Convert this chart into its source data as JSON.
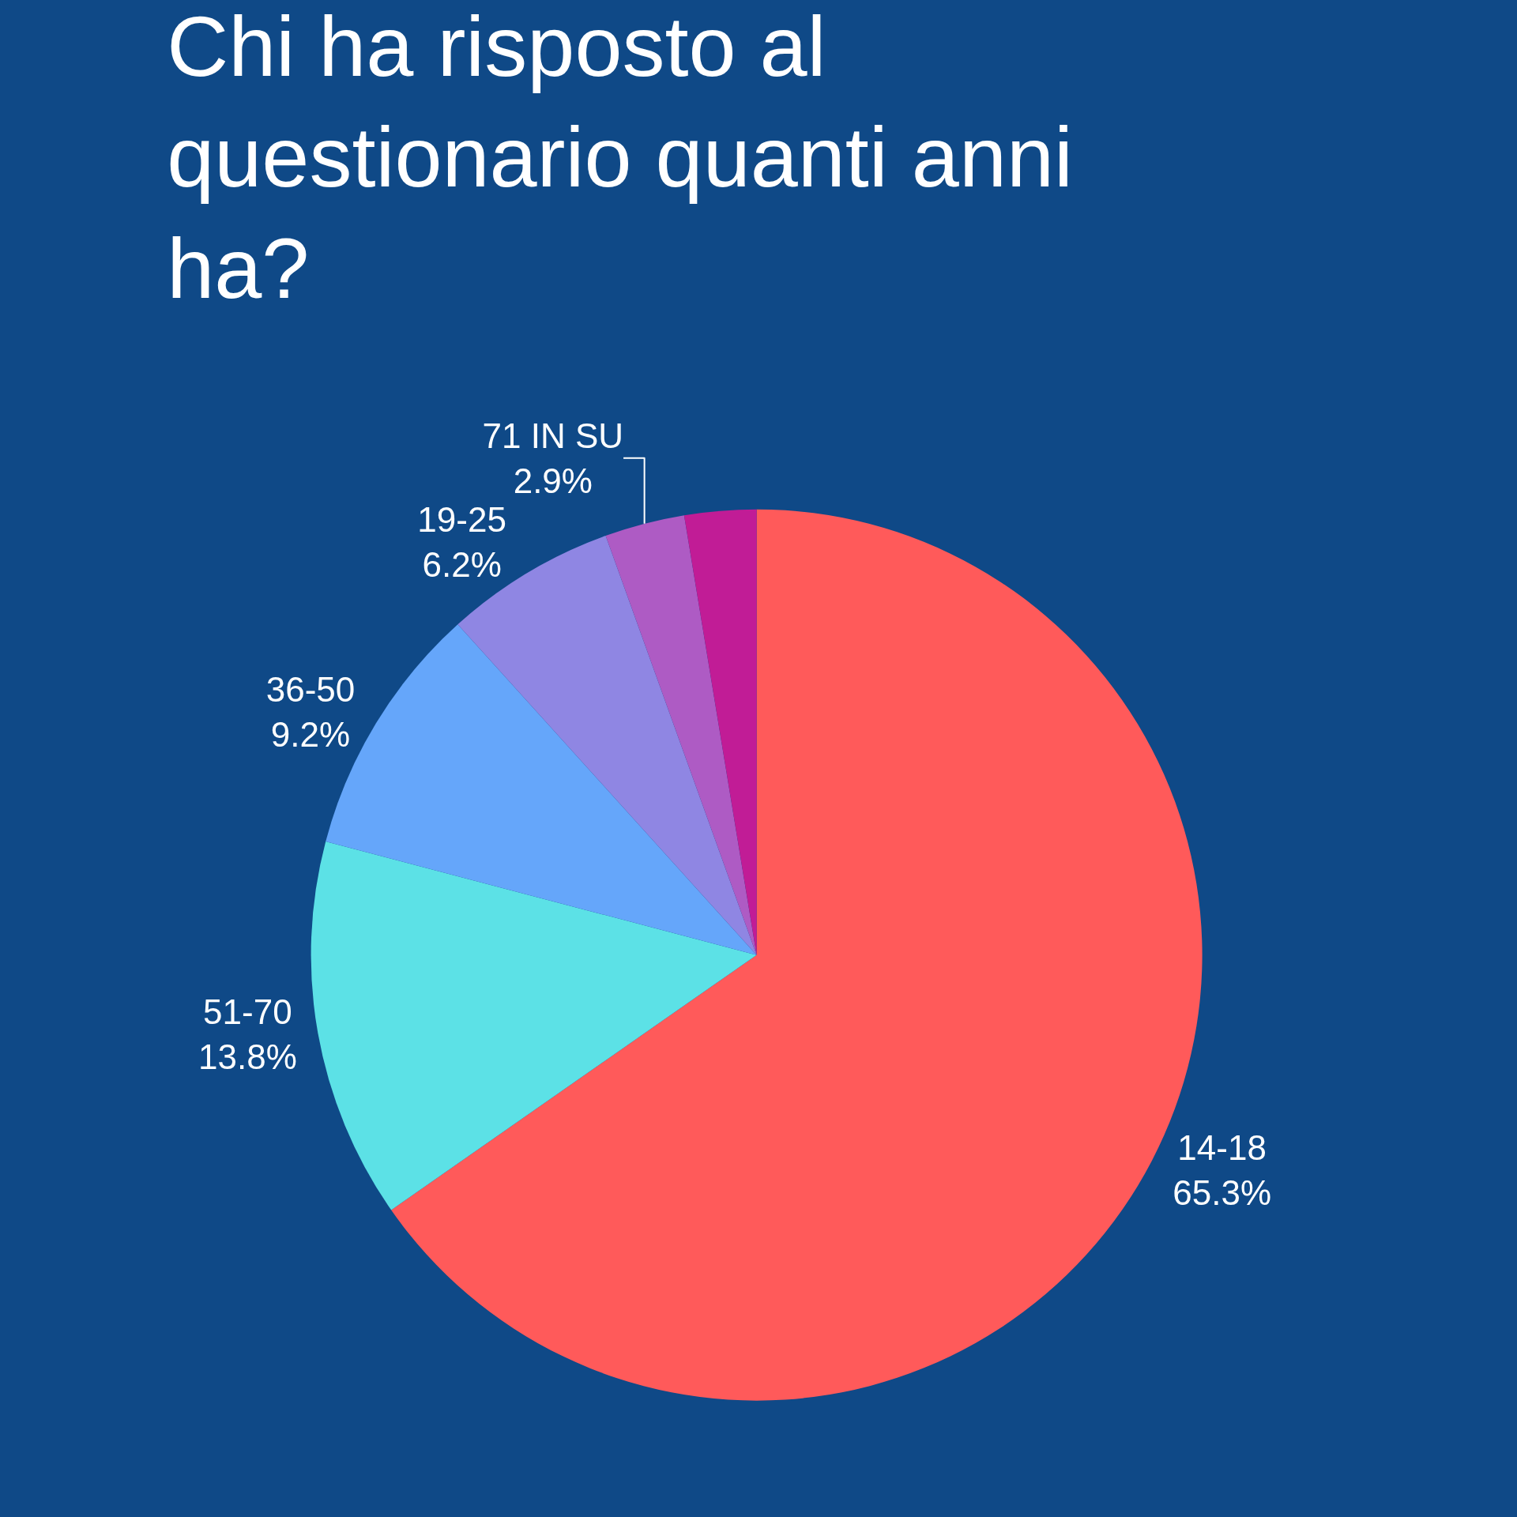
{
  "chart_data": {
    "type": "pie",
    "title": "Chi ha risposto al questionario quanti anni ha?",
    "categories": [
      "14-18",
      "51-70",
      "36-50",
      "19-25",
      "71 IN SU",
      null
    ],
    "values": [
      65.3,
      13.8,
      9.2,
      6.2,
      2.9,
      2.6
    ],
    "value_labels": [
      "65.3%",
      "13.8%",
      "9.2%",
      "6.2%",
      "2.9%",
      null
    ],
    "colors": [
      "#ff5a5a",
      "#5ce1e6",
      "#65a6fa",
      "#8f86e3",
      "#ae5bc4",
      "#c11c96"
    ],
    "legend": false
  }
}
